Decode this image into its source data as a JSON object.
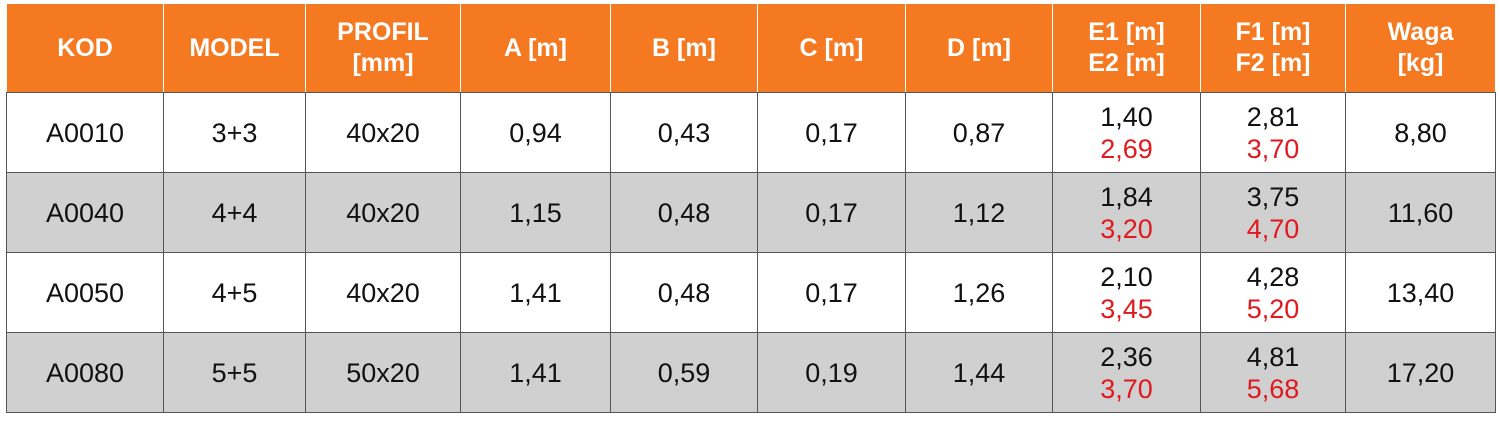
{
  "table": {
    "header": [
      [
        "KOD"
      ],
      [
        "MODEL"
      ],
      [
        "PROFIL",
        "[mm]"
      ],
      [
        "A [m]"
      ],
      [
        "B [m]"
      ],
      [
        "C [m]"
      ],
      [
        "D [m]"
      ],
      [
        "E1 [m]",
        "E2 [m]"
      ],
      [
        "F1 [m]",
        "F2 [m]"
      ],
      [
        "Waga",
        "[kg]"
      ]
    ],
    "rows": [
      [
        "A0010",
        "3+3",
        "40x20",
        "0,94",
        "0,43",
        "0,17",
        "0,87",
        [
          "1,40",
          "2,69"
        ],
        [
          "2,81",
          "3,70"
        ],
        "8,80"
      ],
      [
        "A0040",
        "4+4",
        "40x20",
        "1,15",
        "0,48",
        "0,17",
        "1,12",
        [
          "1,84",
          "3,20"
        ],
        [
          "3,75",
          "4,70"
        ],
        "11,60"
      ],
      [
        "A0050",
        "4+5",
        "40x20",
        "1,41",
        "0,48",
        "0,17",
        "1,26",
        [
          "2,10",
          "3,45"
        ],
        [
          "4,28",
          "5,20"
        ],
        "13,40"
      ],
      [
        "A0080",
        "5+5",
        "50x20",
        "1,41",
        "0,59",
        "0,19",
        "1,44",
        [
          "2,36",
          "3,70"
        ],
        [
          "4,81",
          "5,68"
        ],
        "17,20"
      ]
    ]
  }
}
